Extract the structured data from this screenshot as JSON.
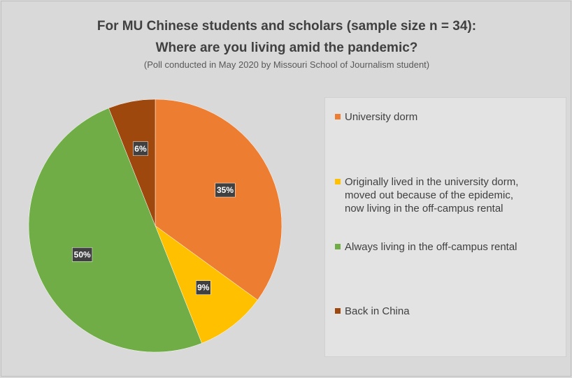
{
  "chart_data": {
    "type": "pie",
    "title_line1": "For MU Chinese students and scholars (sample size n = 34):",
    "title_line2": "Where are you living amid the pandemic?",
    "subtitle": "(Poll conducted in May 2020 by Missouri School of Journalism student)",
    "legend_position": "right",
    "slices": [
      {
        "label": "University dorm",
        "value": 35,
        "display": "35%",
        "color": "#ed7d31"
      },
      {
        "label": "Originally lived in the university dorm, moved out because of the epidemic, now living in the off-campus rental",
        "label_lines": [
          "Originally lived in the university dorm,",
          "moved out because of the epidemic,",
          "now living in the off-campus rental"
        ],
        "value": 9,
        "display": "9%",
        "color": "#ffc000"
      },
      {
        "label": "Always living in the off-campus rental",
        "value": 50,
        "display": "50%",
        "color": "#70ad47"
      },
      {
        "label": "Back in China",
        "value": 6,
        "display": "6%",
        "color": "#9e480e"
      }
    ]
  }
}
